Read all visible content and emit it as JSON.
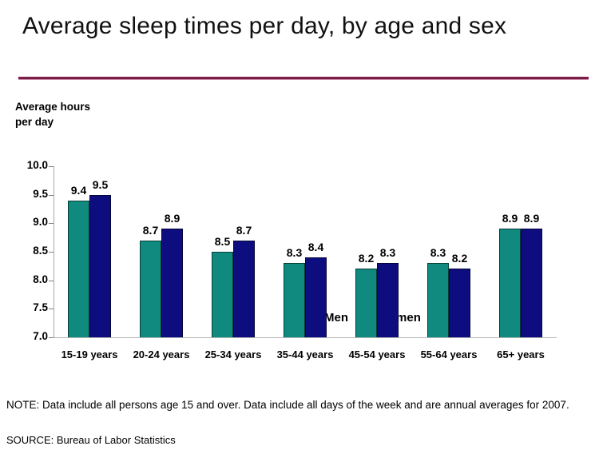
{
  "page": {
    "title": "Average sleep times per day, by age and sex",
    "note": "NOTE: Data include all persons age 15 and over. Data include all days of the week and are annual averages for 2007.",
    "source": "SOURCE: Bureau of Labor Statistics"
  },
  "colors": {
    "title_underline": "#7A1F4A",
    "axis_line": "#A8A8A8",
    "men_bar": "#10897F",
    "women_bar": "#0D0D80"
  },
  "chart_data": {
    "type": "bar",
    "title": "Average sleep times per day, by age and sex",
    "xlabel": "",
    "ylabel": "Average hours per day",
    "ylim": [
      7.0,
      10.0
    ],
    "yticks": [
      10.0,
      9.5,
      9.0,
      8.5,
      8.0,
      7.5,
      7.0
    ],
    "grid": false,
    "legend_position": "top-center",
    "categories": [
      "15-19 years",
      "20-24 years",
      "25-34 years",
      "35-44 years",
      "45-54 years",
      "55-64 years",
      "65+ years"
    ],
    "series": [
      {
        "name": "Men",
        "color": "#10897F",
        "values": [
          9.4,
          8.7,
          8.5,
          8.3,
          8.2,
          8.3,
          8.9
        ]
      },
      {
        "name": "Women",
        "color": "#0D0D80",
        "values": [
          9.5,
          8.9,
          8.7,
          8.4,
          8.3,
          8.2,
          8.9
        ]
      }
    ]
  }
}
